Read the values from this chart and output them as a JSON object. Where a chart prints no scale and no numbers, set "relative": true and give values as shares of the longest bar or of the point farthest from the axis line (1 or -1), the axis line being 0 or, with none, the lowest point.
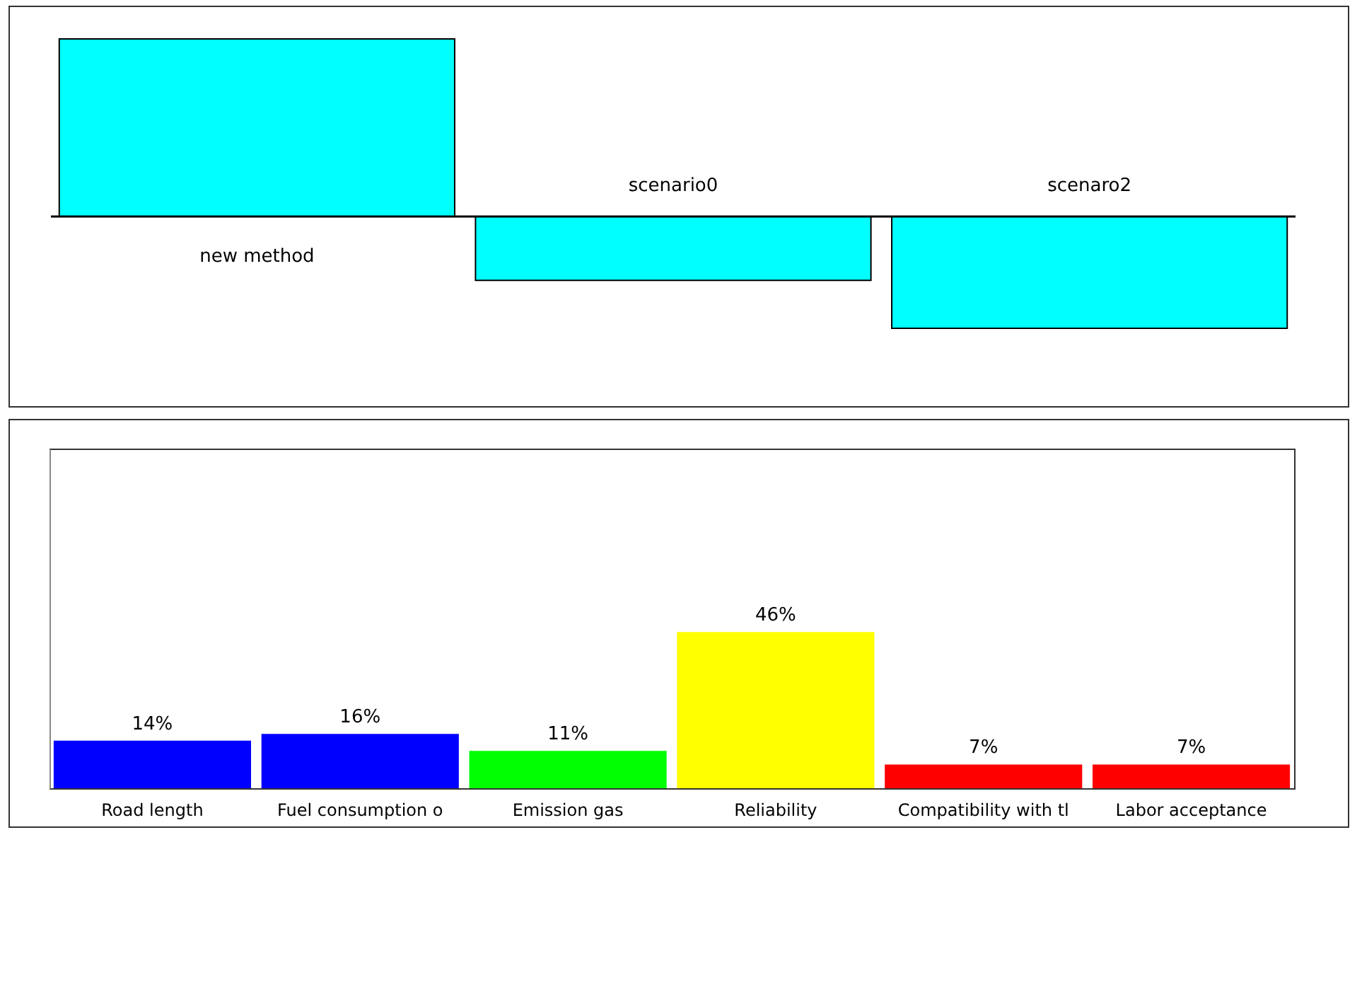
{
  "chart_data": [
    {
      "type": "bar",
      "relative": true,
      "categories": [
        "new method",
        "scenario0",
        "scenaro2"
      ],
      "values": [
        1,
        -0.36,
        -0.63
      ],
      "color": "#00ffff",
      "tick_labels": false
    },
    {
      "type": "bar",
      "categories": [
        "Road length",
        "Fuel consumption o",
        "Emission gas",
        "Reliability",
        "Compatibility with tl",
        "Labor acceptance"
      ],
      "values": [
        14,
        16,
        11,
        46,
        7,
        7
      ],
      "colors": [
        "#0000ff",
        "#0000ff",
        "#00ff00",
        "#ffff00",
        "#ff0000",
        "#ff0000"
      ],
      "value_labels": [
        "14%",
        "16%",
        "11%",
        "46%",
        "7%",
        "7%"
      ],
      "ylim": [
        0,
        100
      ],
      "tick_labels": "x"
    }
  ]
}
